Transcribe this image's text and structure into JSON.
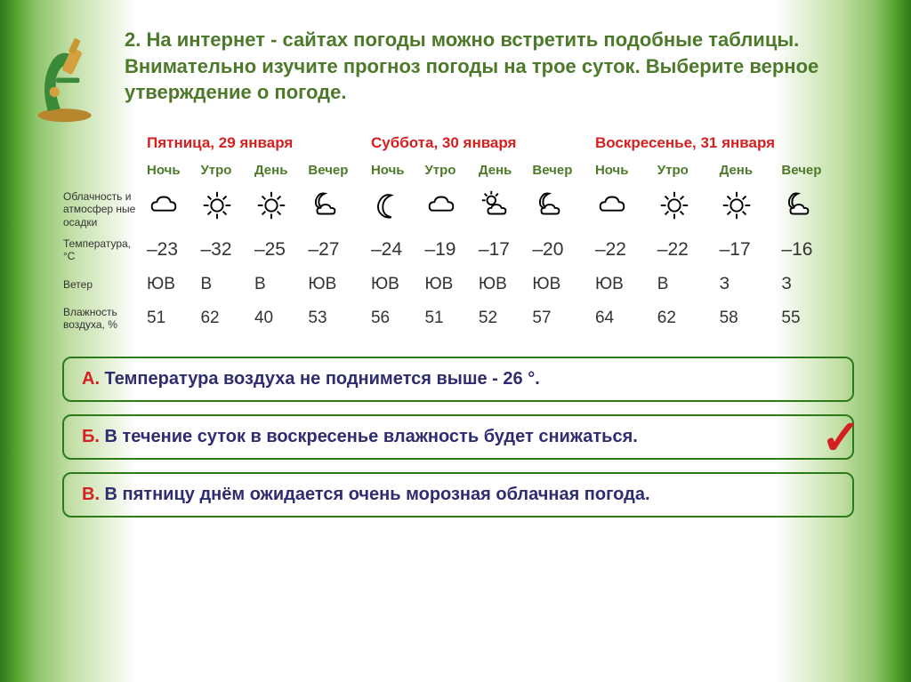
{
  "question": {
    "number": "2.",
    "text": "На интернет - сайтах погоды можно встретить подобные таблицы. Внимательно изучите прогноз погоды на трое суток. Выберите верное утверждение о погоде."
  },
  "days": [
    {
      "label": "Пятница, 29 января"
    },
    {
      "label": "Суббота, 30 января"
    },
    {
      "label": "Воскресенье, 31 января"
    }
  ],
  "times": [
    "Ночь",
    "Утро",
    "День",
    "Вечер",
    "Ночь",
    "Утро",
    "День",
    "Вечер",
    "Ночь",
    "Утро",
    "День",
    "Вечер"
  ],
  "row_labels": {
    "clouds": "Облачность и атмосфер ные осадки",
    "temp": "Температура, °C",
    "wind": "Ветер",
    "humidity": "Влажность воздуха, %"
  },
  "icons": [
    "cloud",
    "sun",
    "sun",
    "mooncloud",
    "moon",
    "cloud",
    "suncloud",
    "mooncloud",
    "cloud",
    "sun",
    "sun",
    "mooncloud"
  ],
  "temps": [
    "–23",
    "–32",
    "–25",
    "–27",
    "–24",
    "–19",
    "–17",
    "–20",
    "–22",
    "–22",
    "–17",
    "–16"
  ],
  "winds": [
    "ЮВ",
    "В",
    "В",
    "ЮВ",
    "ЮВ",
    "ЮВ",
    "ЮВ",
    "ЮВ",
    "ЮВ",
    "В",
    "З",
    "З"
  ],
  "humidity": [
    "51",
    "62",
    "40",
    "53",
    "56",
    "51",
    "52",
    "57",
    "64",
    "62",
    "58",
    "55"
  ],
  "answers": [
    {
      "letter": "А.",
      "text": " Температура  воздуха  не  поднимется  выше  - 26 °.",
      "correct": false
    },
    {
      "letter": "Б.",
      "text": " В течение  суток в воскресенье  влажность  будет снижаться.",
      "correct": true
    },
    {
      "letter": "В.",
      "text": " В пятницу днём ожидается  очень  морозная облачная погода.",
      "correct": false
    }
  ],
  "colors": {
    "green": "#4d7a2a",
    "red": "#d42020",
    "navy": "#2d2d70"
  }
}
